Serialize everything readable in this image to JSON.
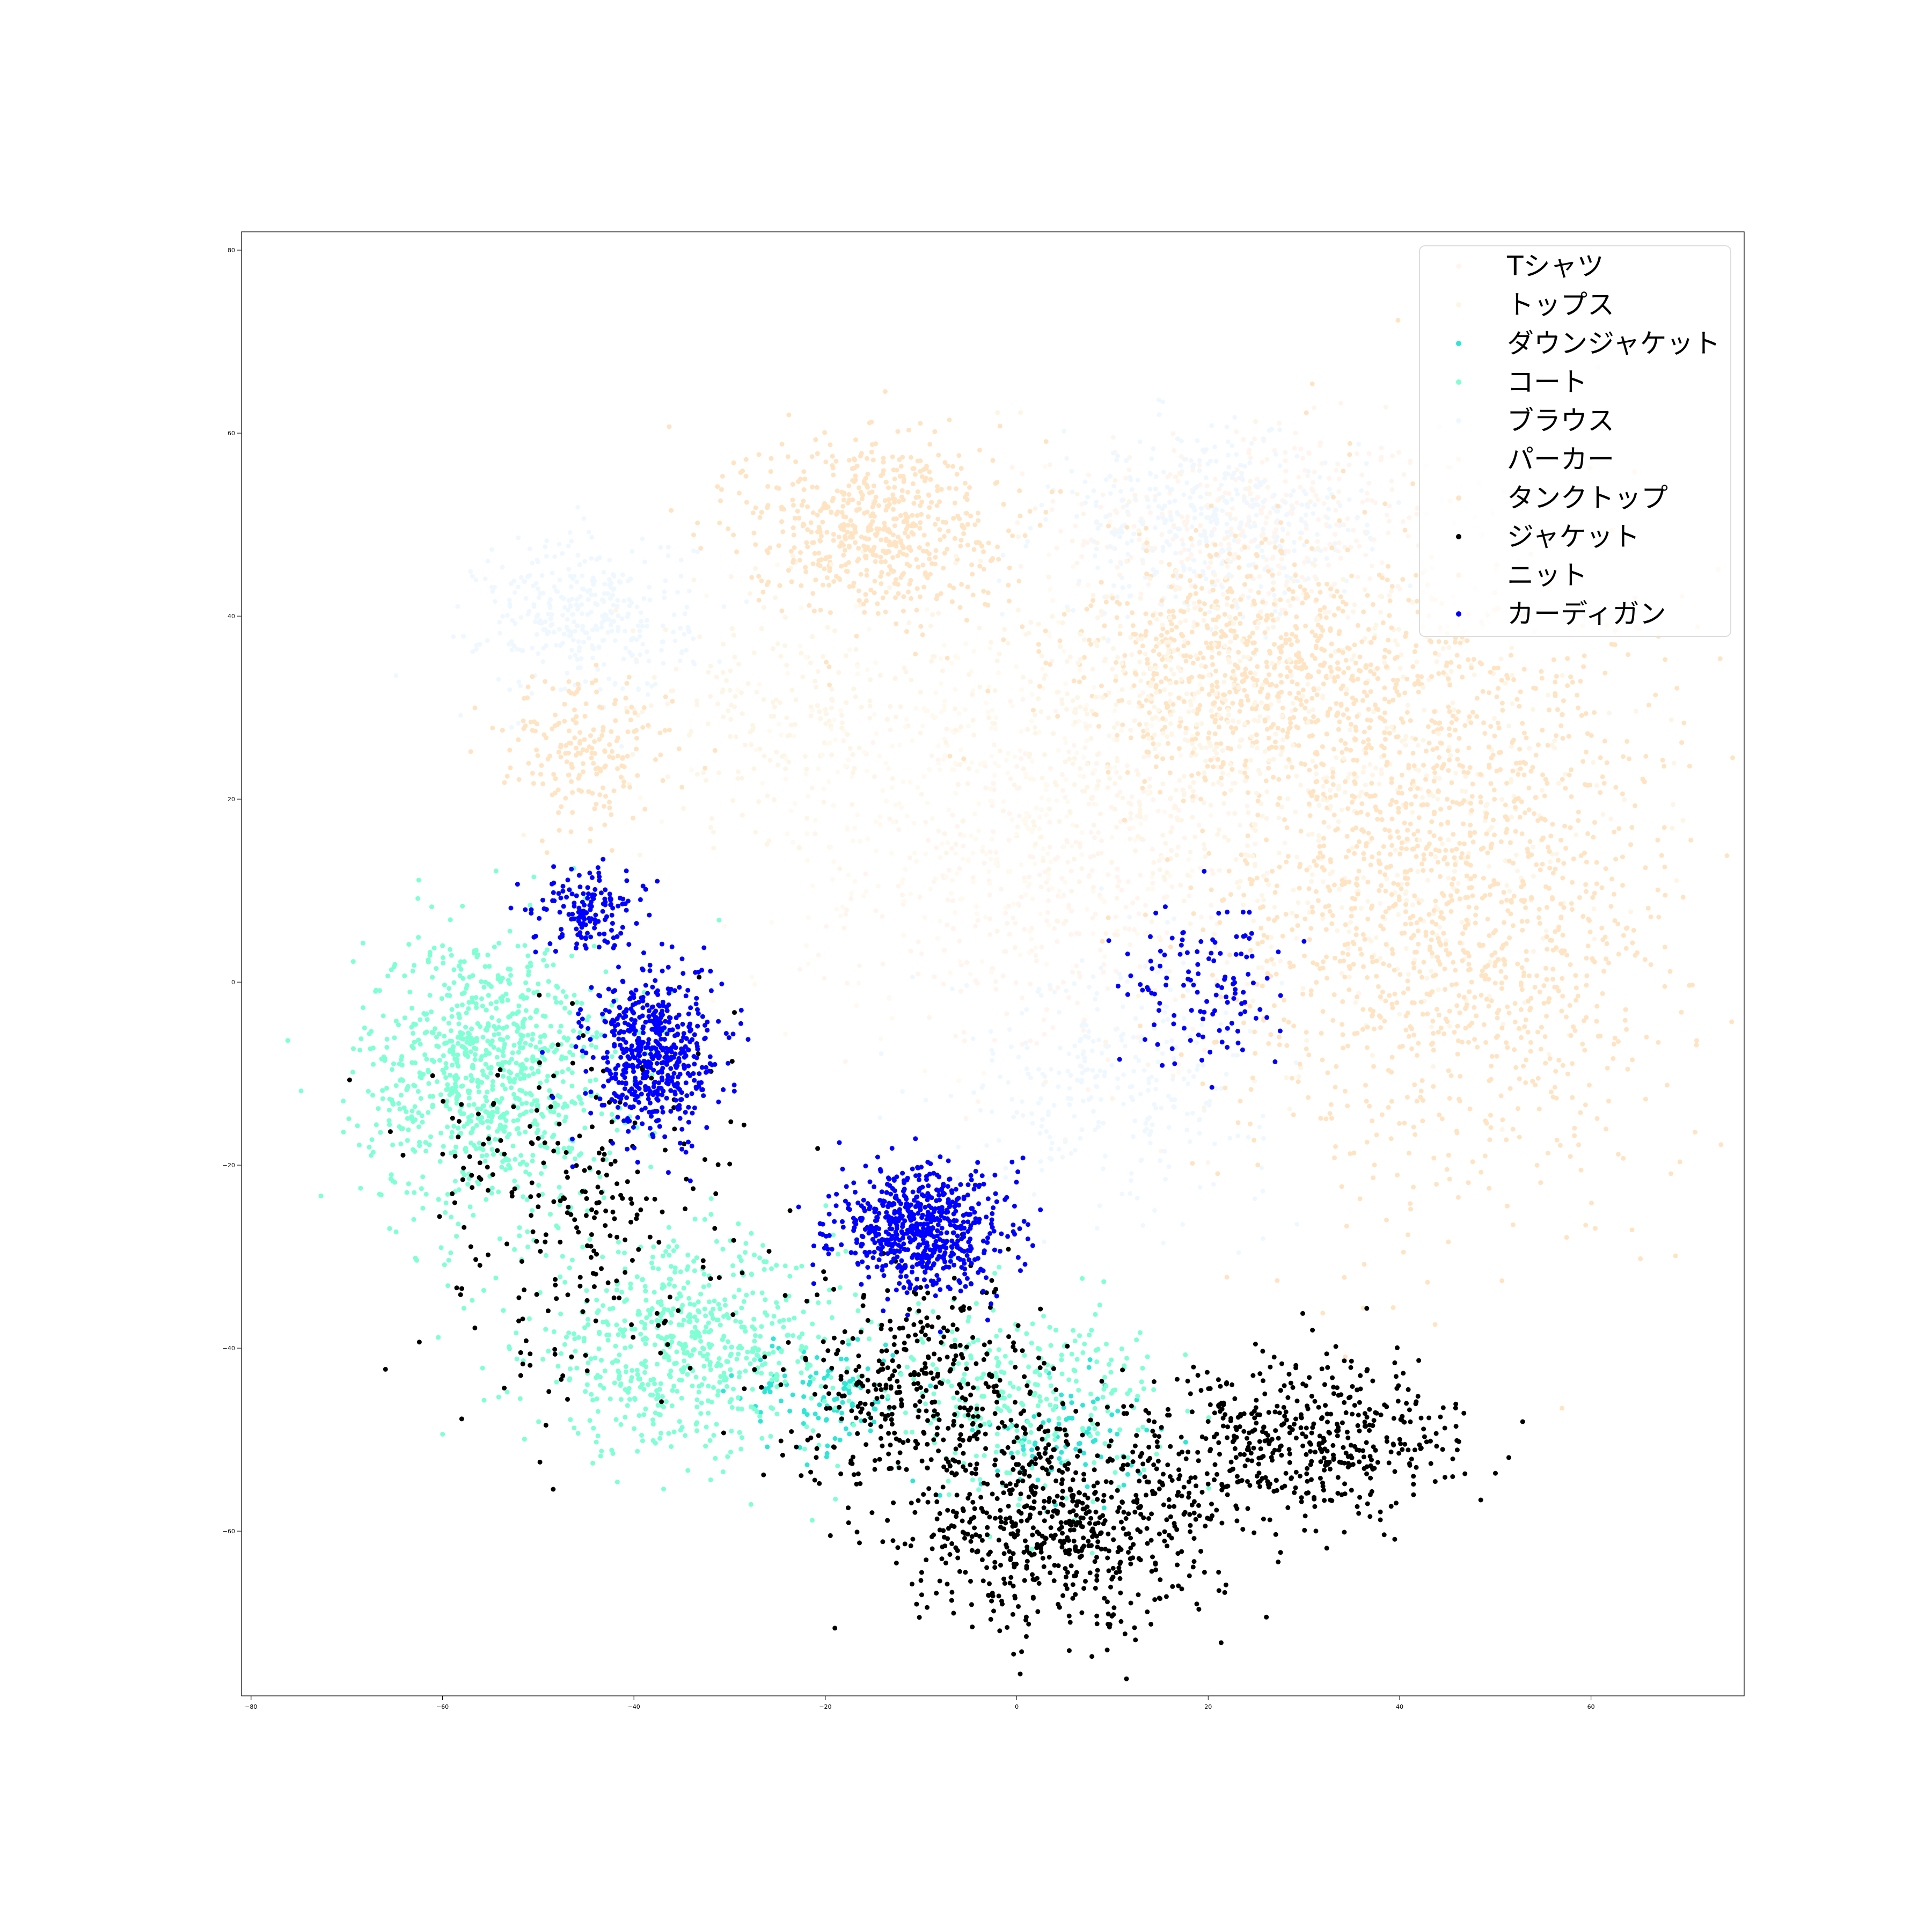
{
  "chart_data": {
    "type": "scatter",
    "title": "",
    "xlabel": "",
    "ylabel": "",
    "xlim": [
      -81,
      76
    ],
    "ylim": [
      -78,
      82
    ],
    "xticks": [
      -80,
      -60,
      -40,
      -20,
      0,
      20,
      40,
      60
    ],
    "yticks": [
      80,
      60,
      40,
      20,
      0,
      -20,
      -40,
      -60
    ],
    "xtick_labels": [
      "−80",
      "−60",
      "−40",
      "−20",
      "0",
      "20",
      "40",
      "60"
    ],
    "ytick_labels": [
      "80",
      "60",
      "40",
      "20",
      "0",
      "−20",
      "−40",
      "−60"
    ],
    "grid": false,
    "legend_position": "top-right",
    "series": [
      {
        "name": "Tシャツ",
        "color": "#fff5ee",
        "clusters": [
          {
            "cx": 25,
            "cy": 50,
            "rx": 18,
            "ry": 10,
            "n": 380
          },
          {
            "cx": 5,
            "cy": 10,
            "rx": 20,
            "ry": 18,
            "n": 350
          }
        ]
      },
      {
        "name": "トップス",
        "color": "#fdf5e6",
        "clusters": [
          {
            "cx": 38,
            "cy": 20,
            "rx": 25,
            "ry": 25,
            "n": 450
          },
          {
            "cx": -25,
            "cy": 30,
            "rx": 15,
            "ry": 12,
            "n": 200
          }
        ]
      },
      {
        "name": "ダウンジャケット",
        "color": "#2ee6d6",
        "clusters": [
          {
            "cx": -20,
            "cy": -45,
            "rx": 8,
            "ry": 6,
            "n": 100
          },
          {
            "cx": 5,
            "cy": -50,
            "rx": 8,
            "ry": 6,
            "n": 80
          }
        ]
      },
      {
        "name": "コート",
        "color": "#7fffd4",
        "clusters": [
          {
            "cx": -55,
            "cy": -10,
            "rx": 12,
            "ry": 14,
            "n": 900
          },
          {
            "cx": -35,
            "cy": -40,
            "rx": 15,
            "ry": 10,
            "n": 650
          },
          {
            "cx": 0,
            "cy": -45,
            "rx": 14,
            "ry": 9,
            "n": 300
          }
        ]
      },
      {
        "name": "ブラウス",
        "color": "#f0f8ff",
        "clusters": [
          {
            "cx": -45,
            "cy": 40,
            "rx": 10,
            "ry": 8,
            "n": 350
          },
          {
            "cx": 20,
            "cy": 50,
            "rx": 15,
            "ry": 9,
            "n": 400
          },
          {
            "cx": 10,
            "cy": -10,
            "rx": 15,
            "ry": 12,
            "n": 300
          }
        ]
      },
      {
        "name": "パーカー",
        "color": "#fffaf0",
        "clusters": [
          {
            "cx": -5,
            "cy": 20,
            "rx": 20,
            "ry": 20,
            "n": 400
          }
        ]
      },
      {
        "name": "タンクトップ",
        "color": "#ffe4c4",
        "clusters": [
          {
            "cx": -15,
            "cy": 50,
            "rx": 12,
            "ry": 9,
            "n": 600
          },
          {
            "cx": 45,
            "cy": 10,
            "rx": 22,
            "ry": 30,
            "n": 1500
          },
          {
            "cx": 25,
            "cy": 35,
            "rx": 18,
            "ry": 12,
            "n": 700
          },
          {
            "cx": -45,
            "cy": 25,
            "rx": 8,
            "ry": 8,
            "n": 200
          }
        ]
      },
      {
        "name": "ジャケット",
        "color": "#000000",
        "clusters": [
          {
            "cx": 5,
            "cy": -60,
            "rx": 15,
            "ry": 10,
            "n": 650
          },
          {
            "cx": 30,
            "cy": -50,
            "rx": 15,
            "ry": 8,
            "n": 500
          },
          {
            "cx": -10,
            "cy": -45,
            "rx": 12,
            "ry": 12,
            "n": 400
          },
          {
            "cx": -45,
            "cy": -25,
            "rx": 15,
            "ry": 18,
            "n": 250
          }
        ]
      },
      {
        "name": "ニット",
        "color": "#fdf5e6",
        "clusters": [
          {
            "cx": 15,
            "cy": 30,
            "rx": 20,
            "ry": 20,
            "n": 450
          }
        ]
      },
      {
        "name": "カーディガン",
        "color": "#0000ff",
        "clusters": [
          {
            "cx": -10,
            "cy": -27,
            "rx": 8,
            "ry": 6,
            "n": 650
          },
          {
            "cx": -38,
            "cy": -8,
            "rx": 6,
            "ry": 8,
            "n": 550
          },
          {
            "cx": -45,
            "cy": 8,
            "rx": 5,
            "ry": 4,
            "n": 150
          },
          {
            "cx": 20,
            "cy": 0,
            "rx": 8,
            "ry": 8,
            "n": 120
          }
        ]
      }
    ]
  }
}
